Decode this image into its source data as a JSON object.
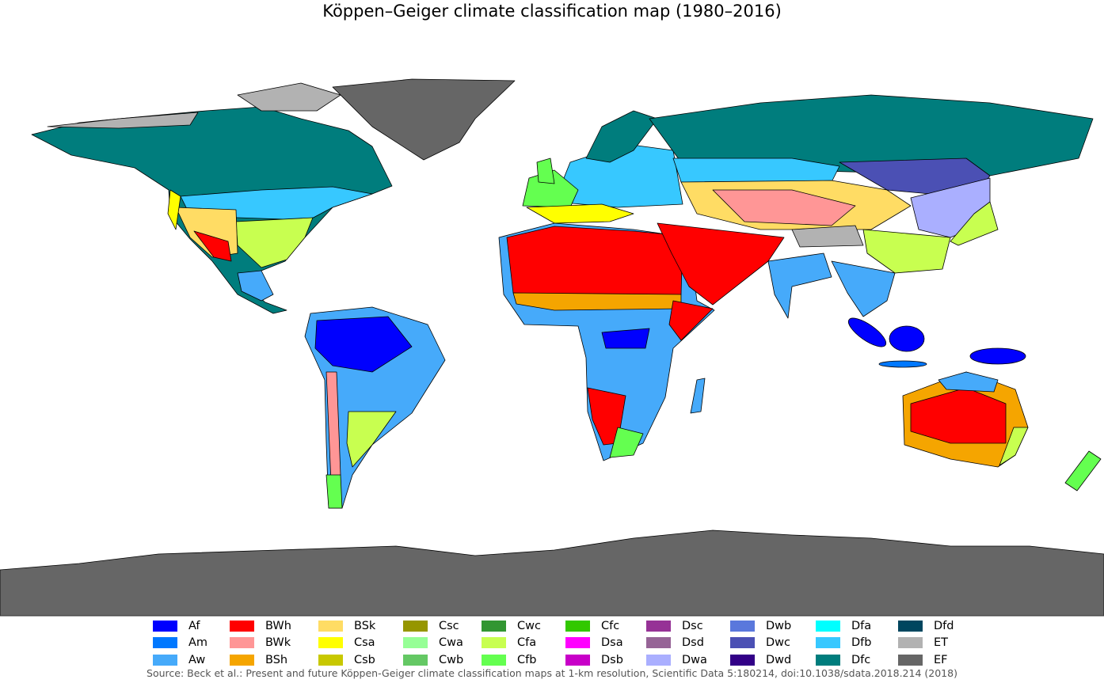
{
  "title": "Köppen–Geiger climate classification map (1980–2016)",
  "legend": [
    [
      {
        "label": "Af",
        "color": "#0000fe"
      },
      {
        "label": "Am",
        "color": "#0078ff"
      },
      {
        "label": "Aw",
        "color": "#46aafa"
      }
    ],
    [
      {
        "label": "BWh",
        "color": "#ff0000"
      },
      {
        "label": "BWk",
        "color": "#ff9696"
      },
      {
        "label": "BSh",
        "color": "#f5a500"
      }
    ],
    [
      {
        "label": "BSk",
        "color": "#ffdc64"
      },
      {
        "label": "Csa",
        "color": "#ffff00"
      },
      {
        "label": "Csb",
        "color": "#c8c800"
      }
    ],
    [
      {
        "label": "Csc",
        "color": "#969600"
      },
      {
        "label": "Cwa",
        "color": "#96ff96"
      },
      {
        "label": "Cwb",
        "color": "#64c864"
      }
    ],
    [
      {
        "label": "Cwc",
        "color": "#329632"
      },
      {
        "label": "Cfa",
        "color": "#c8ff50"
      },
      {
        "label": "Cfb",
        "color": "#64ff50"
      }
    ],
    [
      {
        "label": "Cfc",
        "color": "#32c800"
      },
      {
        "label": "Dsa",
        "color": "#ff00ff"
      },
      {
        "label": "Dsb",
        "color": "#c800c8"
      }
    ],
    [
      {
        "label": "Dsc",
        "color": "#963296"
      },
      {
        "label": "Dsd",
        "color": "#966496"
      },
      {
        "label": "Dwa",
        "color": "#aaafff"
      }
    ],
    [
      {
        "label": "Dwb",
        "color": "#5a78dc"
      },
      {
        "label": "Dwc",
        "color": "#4b50b4"
      },
      {
        "label": "Dwd",
        "color": "#320087"
      }
    ],
    [
      {
        "label": "Dfa",
        "color": "#00ffff"
      },
      {
        "label": "Dfb",
        "color": "#37c8ff"
      },
      {
        "label": "Dfc",
        "color": "#007d7d"
      }
    ],
    [
      {
        "label": "Dfd",
        "color": "#00465f"
      },
      {
        "label": "ET",
        "color": "#b2b2b2"
      },
      {
        "label": "EF",
        "color": "#666666"
      }
    ]
  ],
  "source": "Source: Beck et al.: Present and future Köppen-Geiger climate classification maps at 1-km resolution, Scientific Data 5:180214, doi:10.1038/sdata.2018.214 (2018)"
}
